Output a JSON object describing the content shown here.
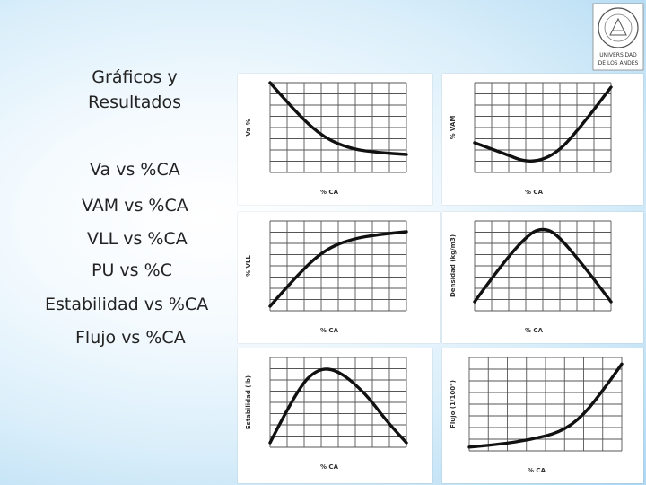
{
  "slide": {
    "title": "Gráficos y\nResultados",
    "items": [
      "Va vs %CA",
      "VAM vs %CA",
      "VLL vs %CA",
      "PU vs %C",
      "Estabilidad vs %CA",
      "Flujo vs %CA"
    ]
  },
  "logo": {
    "text_top": "UNIVERSIDAD",
    "text_bottom": "DE LOS ANDES"
  },
  "chart_data": [
    {
      "type": "line",
      "ylabel": "Va %",
      "xlabel": "% CA",
      "x": [
        0,
        0.2,
        0.4,
        0.6,
        0.8,
        1.0
      ],
      "y": [
        1.0,
        0.65,
        0.38,
        0.26,
        0.22,
        0.2
      ]
    },
    {
      "type": "line",
      "ylabel": "% VAM",
      "xlabel": "% CA",
      "x": [
        0,
        0.2,
        0.4,
        0.6,
        0.8,
        1.0
      ],
      "y": [
        0.33,
        0.22,
        0.1,
        0.2,
        0.55,
        0.95
      ]
    },
    {
      "type": "line",
      "ylabel": "% VLL",
      "xlabel": "% CA",
      "x": [
        0,
        0.2,
        0.4,
        0.6,
        0.8,
        1.0
      ],
      "y": [
        0.05,
        0.4,
        0.68,
        0.8,
        0.85,
        0.88
      ]
    },
    {
      "type": "line",
      "ylabel": "Densidad (kg/m3)",
      "xlabel": "% CA",
      "x": [
        0,
        0.2,
        0.4,
        0.5,
        0.6,
        0.8,
        1.0
      ],
      "y": [
        0.1,
        0.52,
        0.86,
        0.92,
        0.86,
        0.5,
        0.1
      ]
    },
    {
      "type": "line",
      "ylabel": "Estabilidad (lb)",
      "xlabel": "% CA",
      "x": [
        0,
        0.2,
        0.35,
        0.5,
        0.7,
        0.85,
        1.0
      ],
      "y": [
        0.05,
        0.65,
        0.88,
        0.86,
        0.6,
        0.3,
        0.05
      ]
    },
    {
      "type": "line",
      "ylabel": "Flujo (1/100\")",
      "xlabel": "% CA",
      "x": [
        0,
        0.2,
        0.4,
        0.6,
        0.75,
        0.9,
        1.0
      ],
      "y": [
        0.04,
        0.07,
        0.12,
        0.2,
        0.38,
        0.7,
        0.93
      ]
    }
  ]
}
